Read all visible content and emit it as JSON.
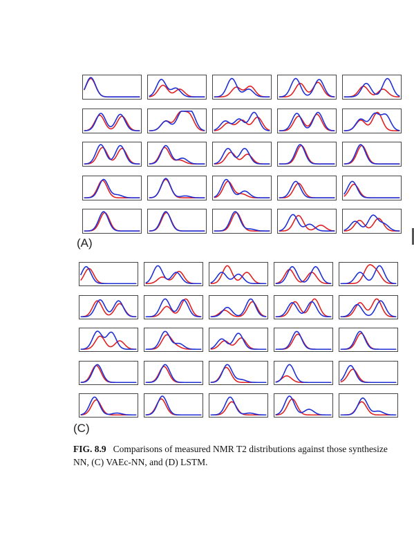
{
  "figure": {
    "panels": [
      {
        "label": "(A)",
        "rows": 5,
        "cols": 5
      },
      {
        "label": "(C)",
        "rows": 5,
        "cols": 5
      }
    ],
    "series_colors": {
      "measured": "#1f2fd6",
      "synthesized": "#e02020"
    },
    "caption": {
      "fig_number": "FIG. 8.9",
      "line1": "Comparisons of measured NMR T2 distributions against those synthesize",
      "line2": "NN, (C) VAEc-NN, and (D) LSTM."
    }
  },
  "chart_data": [
    {
      "type": "line",
      "panel": "(A)",
      "title": "",
      "xlabel": "",
      "ylabel": "",
      "series_names": [
        "measured",
        "synthesized"
      ],
      "subplots": [
        [
          [
            [
              0.12,
              1.0
            ]
          ],
          [
            [
              0.12,
              0.95
            ]
          ]
        ],
        [
          [
            [
              0.22,
              0.9
            ],
            [
              0.48,
              0.45
            ]
          ],
          [
            [
              0.25,
              0.6
            ],
            [
              0.55,
              0.4
            ]
          ]
        ],
        [
          [
            [
              0.32,
              0.95
            ],
            [
              0.62,
              0.4
            ]
          ],
          [
            [
              0.4,
              0.5
            ],
            [
              0.65,
              0.55
            ]
          ]
        ],
        [
          [
            [
              0.3,
              0.95
            ],
            [
              0.72,
              0.9
            ]
          ],
          [
            [
              0.38,
              0.7
            ],
            [
              0.7,
              0.75
            ]
          ]
        ],
        [
          [
            [
              0.4,
              0.7
            ],
            [
              0.78,
              0.95
            ]
          ],
          [
            [
              0.35,
              0.55
            ],
            [
              0.7,
              0.4
            ]
          ]
        ],
        [
          [
            [
              0.3,
              0.9
            ],
            [
              0.65,
              0.85
            ]
          ],
          [
            [
              0.28,
              0.8
            ],
            [
              0.68,
              0.75
            ]
          ]
        ],
        [
          [
            [
              0.3,
              0.5
            ],
            [
              0.58,
              0.9
            ],
            [
              0.75,
              0.95
            ]
          ],
          [
            [
              0.3,
              0.5
            ],
            [
              0.55,
              0.85
            ],
            [
              0.72,
              0.8
            ]
          ]
        ],
        [
          [
            [
              0.2,
              0.5
            ],
            [
              0.45,
              0.6
            ],
            [
              0.72,
              0.95
            ]
          ],
          [
            [
              0.25,
              0.4
            ],
            [
              0.5,
              0.55
            ],
            [
              0.78,
              0.7
            ]
          ]
        ],
        [
          [
            [
              0.32,
              0.9
            ],
            [
              0.7,
              0.95
            ]
          ],
          [
            [
              0.35,
              0.75
            ],
            [
              0.68,
              0.85
            ]
          ]
        ],
        [
          [
            [
              0.3,
              0.6
            ],
            [
              0.55,
              0.85
            ],
            [
              0.75,
              0.8
            ]
          ],
          [
            [
              0.3,
              0.55
            ],
            [
              0.6,
              0.95
            ]
          ]
        ],
        [
          [
            [
              0.3,
              1.0
            ],
            [
              0.65,
              0.95
            ]
          ],
          [
            [
              0.33,
              0.85
            ],
            [
              0.68,
              0.8
            ]
          ]
        ],
        [
          [
            [
              0.3,
              0.95
            ],
            [
              0.6,
              0.3
            ]
          ],
          [
            [
              0.28,
              0.85
            ],
            [
              0.55,
              0.2
            ]
          ]
        ],
        [
          [
            [
              0.25,
              0.8
            ],
            [
              0.55,
              0.8
            ]
          ],
          [
            [
              0.3,
              0.6
            ],
            [
              0.6,
              0.5
            ]
          ]
        ],
        [
          [
            [
              0.38,
              1.0
            ]
          ],
          [
            [
              0.4,
              0.95
            ]
          ]
        ],
        [
          [
            [
              0.3,
              1.0
            ]
          ],
          [
            [
              0.32,
              0.95
            ]
          ]
        ],
        [
          [
            [
              0.35,
              0.95
            ],
            [
              0.6,
              0.15
            ]
          ],
          [
            [
              0.33,
              0.9
            ]
          ]
        ],
        [
          [
            [
              0.3,
              1.0
            ],
            [
              0.65,
              0.1
            ]
          ],
          [
            [
              0.3,
              0.95
            ]
          ]
        ],
        [
          [
            [
              0.22,
              0.95
            ],
            [
              0.55,
              0.35
            ]
          ],
          [
            [
              0.25,
              0.85
            ],
            [
              0.5,
              0.2
            ]
          ]
        ],
        [
          [
            [
              0.3,
              0.85
            ]
          ],
          [
            [
              0.35,
              0.75
            ]
          ]
        ],
        [
          [
            [
              0.15,
              0.85
            ]
          ],
          [
            [
              0.18,
              0.7
            ]
          ]
        ],
        [
          [
            [
              0.35,
              1.0
            ]
          ],
          [
            [
              0.37,
              0.95
            ]
          ]
        ],
        [
          [
            [
              0.3,
              1.0
            ]
          ],
          [
            [
              0.31,
              0.95
            ]
          ]
        ],
        [
          [
            [
              0.38,
              1.0
            ],
            [
              0.65,
              0.1
            ]
          ],
          [
            [
              0.4,
              0.95
            ]
          ]
        ],
        [
          [
            [
              0.25,
              0.85
            ],
            [
              0.55,
              0.35
            ]
          ],
          [
            [
              0.35,
              0.8
            ],
            [
              0.75,
              0.3
            ]
          ]
        ],
        [
          [
            [
              0.2,
              0.5
            ],
            [
              0.52,
              0.8
            ],
            [
              0.72,
              0.35
            ]
          ],
          [
            [
              0.28,
              0.55
            ],
            [
              0.62,
              0.65
            ]
          ]
        ]
      ]
    },
    {
      "type": "line",
      "panel": "(C)",
      "title": "",
      "xlabel": "",
      "ylabel": "",
      "series_names": [
        "measured",
        "synthesized"
      ],
      "subplots": [
        [
          [
            [
              0.1,
              0.9
            ]
          ],
          [
            [
              0.15,
              0.8
            ]
          ]
        ],
        [
          [
            [
              0.22,
              0.95
            ],
            [
              0.55,
              0.6
            ]
          ],
          [
            [
              0.3,
              0.35
            ],
            [
              0.6,
              0.65
            ]
          ]
        ],
        [
          [
            [
              0.2,
              0.6
            ],
            [
              0.5,
              0.5
            ]
          ],
          [
            [
              0.3,
              0.95
            ],
            [
              0.65,
              0.6
            ]
          ]
        ],
        [
          [
            [
              0.3,
              0.9
            ],
            [
              0.72,
              0.9
            ]
          ],
          [
            [
              0.25,
              0.75
            ],
            [
              0.65,
              0.6
            ]
          ]
        ],
        [
          [
            [
              0.35,
              0.6
            ],
            [
              0.7,
              0.95
            ]
          ],
          [
            [
              0.5,
              0.85
            ],
            [
              0.65,
              0.55
            ]
          ]
        ],
        [
          [
            [
              0.35,
              0.9
            ],
            [
              0.68,
              0.85
            ]
          ],
          [
            [
              0.3,
              0.85
            ],
            [
              0.7,
              0.7
            ]
          ]
        ],
        [
          [
            [
              0.35,
              0.95
            ],
            [
              0.68,
              0.9
            ]
          ],
          [
            [
              0.38,
              0.55
            ],
            [
              0.72,
              0.95
            ]
          ]
        ],
        [
          [
            [
              0.3,
              0.5
            ],
            [
              0.72,
              0.95
            ]
          ],
          [
            [
              0.25,
              0.35
            ],
            [
              0.75,
              0.8
            ]
          ]
        ],
        [
          [
            [
              0.3,
              0.75
            ],
            [
              0.65,
              0.8
            ]
          ],
          [
            [
              0.35,
              0.8
            ],
            [
              0.7,
              0.95
            ]
          ]
        ],
        [
          [
            [
              0.3,
              0.65
            ],
            [
              0.72,
              0.85
            ]
          ],
          [
            [
              0.35,
              0.75
            ],
            [
              0.65,
              0.95
            ]
          ]
        ],
        [
          [
            [
              0.3,
              0.95
            ],
            [
              0.55,
              0.9
            ]
          ],
          [
            [
              0.35,
              0.7
            ],
            [
              0.7,
              0.45
            ]
          ]
        ],
        [
          [
            [
              0.35,
              0.95
            ],
            [
              0.6,
              0.3
            ]
          ],
          [
            [
              0.38,
              0.75
            ],
            [
              0.55,
              0.15
            ]
          ]
        ],
        [
          [
            [
              0.2,
              0.55
            ],
            [
              0.5,
              0.85
            ]
          ],
          [
            [
              0.25,
              0.45
            ],
            [
              0.55,
              0.6
            ]
          ]
        ],
        [
          [
            [
              0.38,
              0.95
            ]
          ],
          [
            [
              0.4,
              0.8
            ]
          ]
        ],
        [
          [
            [
              0.35,
              0.95
            ]
          ],
          [
            [
              0.37,
              0.85
            ]
          ]
        ],
        [
          [
            [
              0.3,
              0.95
            ]
          ],
          [
            [
              0.28,
              0.9
            ]
          ]
        ],
        [
          [
            [
              0.35,
              0.95
            ]
          ],
          [
            [
              0.33,
              0.85
            ]
          ]
        ],
        [
          [
            [
              0.3,
              0.95
            ],
            [
              0.55,
              0.15
            ]
          ],
          [
            [
              0.28,
              0.8
            ]
          ]
        ],
        [
          [
            [
              0.25,
              0.95
            ]
          ],
          [
            [
              0.2,
              0.35
            ]
          ]
        ],
        [
          [
            [
              0.18,
              0.9
            ]
          ],
          [
            [
              0.22,
              0.7
            ]
          ]
        ],
        [
          [
            [
              0.25,
              0.95
            ],
            [
              0.65,
              0.1
            ]
          ],
          [
            [
              0.28,
              0.8
            ]
          ]
        ],
        [
          [
            [
              0.3,
              1.0
            ]
          ],
          [
            [
              0.28,
              0.85
            ]
          ]
        ],
        [
          [
            [
              0.35,
              0.95
            ],
            [
              0.7,
              0.1
            ]
          ],
          [
            [
              0.38,
              0.7
            ]
          ]
        ],
        [
          [
            [
              0.25,
              1.0
            ],
            [
              0.6,
              0.3
            ]
          ],
          [
            [
              0.3,
              0.85
            ]
          ]
        ],
        [
          [
            [
              0.4,
              0.9
            ],
            [
              0.68,
              0.2
            ]
          ],
          [
            [
              0.38,
              0.7
            ]
          ]
        ]
      ]
    }
  ]
}
